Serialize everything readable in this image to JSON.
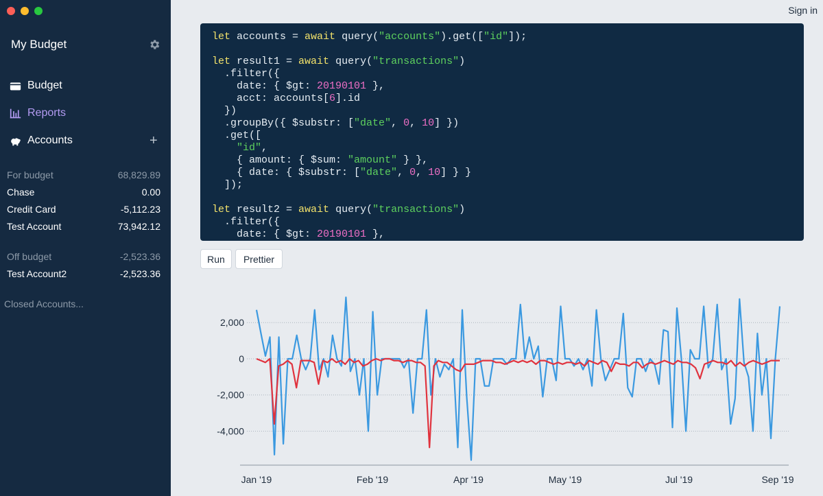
{
  "window": {
    "controls": [
      "close",
      "minimize",
      "zoom"
    ]
  },
  "sidebar": {
    "title": "My Budget",
    "settings_icon": "gear-icon",
    "nav": [
      {
        "label": "Budget",
        "icon": "wallet-icon"
      },
      {
        "label": "Reports",
        "icon": "bar-chart-icon",
        "active": true
      },
      {
        "label": "Accounts",
        "icon": "piggy-bank-icon"
      }
    ],
    "add_account_symbol": "+",
    "on_budget": {
      "label": "For budget",
      "total": "68,829.89",
      "accounts": [
        {
          "name": "Chase",
          "balance": "0.00"
        },
        {
          "name": "Credit Card",
          "balance": "-5,112.23"
        },
        {
          "name": "Test Account",
          "balance": "73,942.12"
        }
      ]
    },
    "off_budget": {
      "label": "Off budget",
      "total": "-2,523.36",
      "accounts": [
        {
          "name": "Test Account2",
          "balance": "-2,523.36"
        }
      ]
    },
    "closed_label": "Closed Accounts..."
  },
  "header": {
    "sign_in": "Sign in"
  },
  "editor": {
    "lines": [
      [
        [
          "kw",
          "let"
        ],
        [
          "t",
          " accounts = "
        ],
        [
          "kw",
          "await"
        ],
        [
          "t",
          " query("
        ],
        [
          "str",
          "\"accounts\""
        ],
        [
          "t",
          ").get(["
        ],
        [
          "str",
          "\"id\""
        ],
        [
          "t",
          "]);"
        ]
      ],
      [],
      [
        [
          "kw",
          "let"
        ],
        [
          "t",
          " result1 = "
        ],
        [
          "kw",
          "await"
        ],
        [
          "t",
          " query("
        ],
        [
          "str",
          "\"transactions\""
        ],
        [
          "t",
          ")"
        ]
      ],
      [
        [
          "t",
          "  .filter({"
        ]
      ],
      [
        [
          "t",
          "    date: { $gt: "
        ],
        [
          "num",
          "20190101"
        ],
        [
          "t",
          " },"
        ]
      ],
      [
        [
          "t",
          "    acct: accounts["
        ],
        [
          "num",
          "6"
        ],
        [
          "t",
          "].id"
        ]
      ],
      [
        [
          "t",
          "  })"
        ]
      ],
      [
        [
          "t",
          "  .groupBy({ $substr: ["
        ],
        [
          "str",
          "\"date\""
        ],
        [
          "t",
          ", "
        ],
        [
          "num",
          "0"
        ],
        [
          "t",
          ", "
        ],
        [
          "num",
          "10"
        ],
        [
          "t",
          "] })"
        ]
      ],
      [
        [
          "t",
          "  .get(["
        ]
      ],
      [
        [
          "t",
          "    "
        ],
        [
          "str",
          "\"id\""
        ],
        [
          "t",
          ","
        ]
      ],
      [
        [
          "t",
          "    { amount: { $sum: "
        ],
        [
          "str",
          "\"amount\""
        ],
        [
          "t",
          " } },"
        ]
      ],
      [
        [
          "t",
          "    { date: { $substr: ["
        ],
        [
          "str",
          "\"date\""
        ],
        [
          "t",
          ", "
        ],
        [
          "num",
          "0"
        ],
        [
          "t",
          ", "
        ],
        [
          "num",
          "10"
        ],
        [
          "t",
          "] } }"
        ]
      ],
      [
        [
          "t",
          "  ]);"
        ]
      ],
      [],
      [
        [
          "kw",
          "let"
        ],
        [
          "t",
          " result2 = "
        ],
        [
          "kw",
          "await"
        ],
        [
          "t",
          " query("
        ],
        [
          "str",
          "\"transactions\""
        ],
        [
          "t",
          ")"
        ]
      ],
      [
        [
          "t",
          "  .filter({"
        ]
      ],
      [
        [
          "t",
          "    date: { $gt: "
        ],
        [
          "num",
          "20190101"
        ],
        [
          "t",
          " },"
        ]
      ]
    ],
    "colors": {
      "background": "#102a43",
      "keyword": "#f4e36b",
      "string": "#5ed15e",
      "number": "#ef6fc6"
    }
  },
  "buttons": {
    "run": "Run",
    "prettier": "Prettier"
  },
  "chart_data": {
    "type": "line",
    "x_tick_labels": [
      "Jan '19",
      "Feb '19",
      "Apr '19",
      "May '19",
      "Jul '19",
      "Sep '19"
    ],
    "y_ticks": [
      2000,
      0,
      -2000,
      -4000
    ],
    "y_tick_labels": [
      "2,000",
      "0",
      "-2,000",
      "-4,000"
    ],
    "ylim": [
      -5800,
      3600
    ],
    "grid": "horizontal dotted",
    "series": [
      {
        "color": "#3b99e0",
        "values": [
          2700,
          1400,
          150,
          1200,
          -5300,
          1200,
          -4700,
          0,
          0,
          1300,
          0,
          -600,
          0,
          2700,
          -600,
          0,
          -1000,
          1300,
          0,
          -400,
          3400,
          -700,
          0,
          -2000,
          0,
          -4000,
          2600,
          -2000,
          0,
          0,
          0,
          0,
          0,
          -500,
          0,
          -3000,
          0,
          0,
          2700,
          -2000,
          0,
          -1000,
          -300,
          -600,
          0,
          -4900,
          2700,
          -2100,
          -5600,
          0,
          0,
          -1500,
          -1500,
          0,
          0,
          0,
          -300,
          0,
          0,
          3000,
          0,
          1200,
          0,
          700,
          -2100,
          0,
          0,
          -1200,
          2900,
          0,
          0,
          -400,
          0,
          -600,
          0,
          -1500,
          2700,
          0,
          -1200,
          -600,
          0,
          0,
          2500,
          -1600,
          -2100,
          0,
          0,
          -700,
          0,
          -300,
          -1400,
          1600,
          1500,
          -3800,
          2800,
          0,
          -4000,
          500,
          0,
          0,
          2900,
          -500,
          0,
          3000,
          -600,
          0,
          -3600,
          -2200,
          3300,
          -200,
          -1000,
          -4000,
          1400,
          -2000,
          0,
          -4400,
          0,
          2900
        ]
      },
      {
        "color": "#e0333e",
        "values": [
          0,
          -100,
          -200,
          0,
          -3600,
          -400,
          -300,
          -100,
          -300,
          -1600,
          -100,
          -100,
          -100,
          -200,
          -1400,
          -100,
          -200,
          0,
          -200,
          -100,
          -300,
          0,
          -200,
          -100,
          -400,
          -300,
          -100,
          0,
          -100,
          0,
          0,
          -100,
          -100,
          -200,
          -100,
          -100,
          -200,
          -200,
          -400,
          -4900,
          -400,
          -100,
          -200,
          -200,
          -400,
          -600,
          -700,
          -300,
          -300,
          -300,
          -200,
          -100,
          -100,
          -100,
          -200,
          -200,
          -300,
          -200,
          -100,
          -200,
          -100,
          -200,
          -100,
          -300,
          -100,
          -100,
          -200,
          -300,
          -200,
          -300,
          -200,
          -200,
          -300,
          -200,
          -400,
          -100,
          -200,
          -300,
          -100,
          -200,
          -700,
          -200,
          -300,
          -300,
          -400,
          -200,
          -200,
          -500,
          -300,
          -200,
          -300,
          -200,
          -100,
          -200,
          -300,
          -100,
          -200,
          -200,
          -300,
          -500,
          -1100,
          -300,
          -200,
          -100,
          -200,
          -200,
          -300,
          -100,
          -400,
          -200,
          -400,
          -200,
          -100,
          -200,
          -300,
          -200,
          -100,
          -100,
          -100
        ]
      }
    ]
  }
}
